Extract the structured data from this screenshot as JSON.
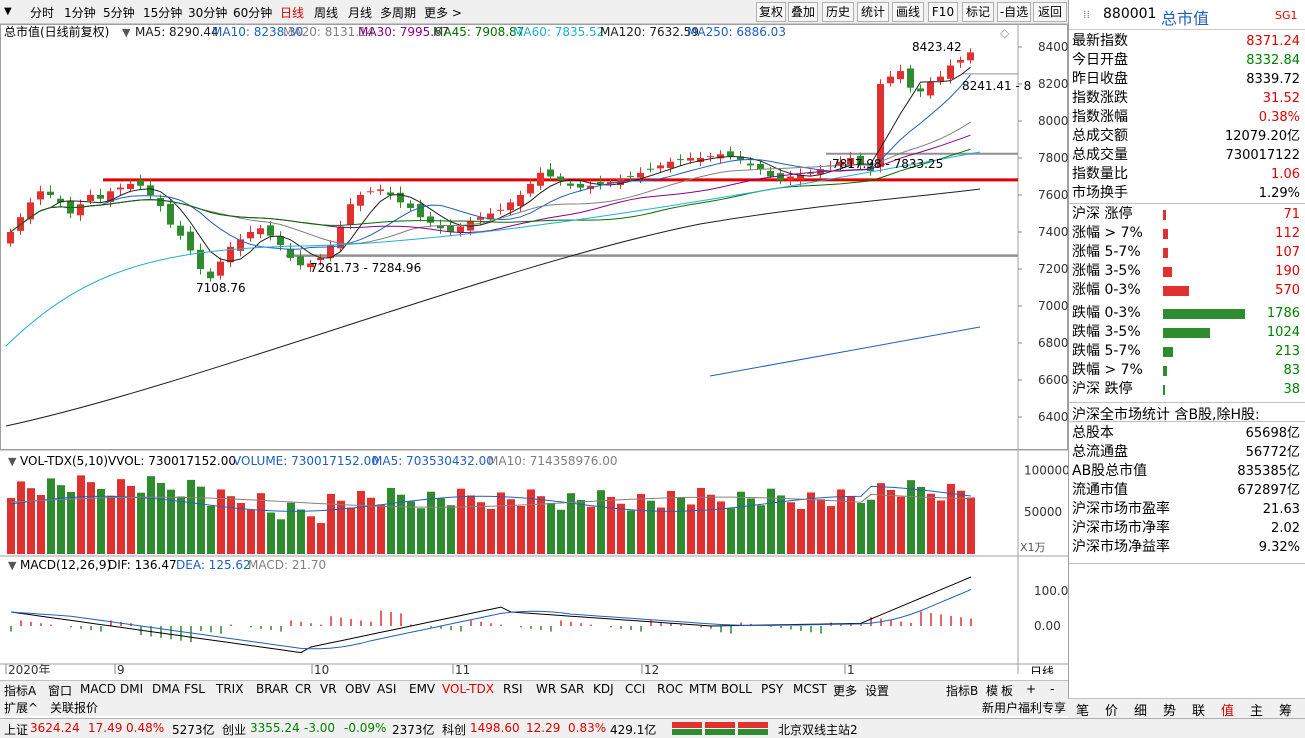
{
  "toolbar": {
    "periods": [
      "分时",
      "1分钟",
      "5分钟",
      "15分钟",
      "30分钟",
      "60分钟",
      "日线",
      "周线",
      "月线",
      "多周期",
      "更多 >"
    ],
    "active_period": "日线",
    "buttons": [
      "复权",
      "叠加",
      "历史",
      "统计",
      "画线",
      "F10",
      "标记",
      "-自选",
      "返回"
    ]
  },
  "chart": {
    "title": "总市值(日线前复权)",
    "ma_legend": [
      {
        "label": "MA5: 8290.44",
        "color": "#202020"
      },
      {
        "label": "MA10: 8238.30",
        "color": "#1f5fbf"
      },
      {
        "label": "MA20: 8131.14",
        "color": "#808080"
      },
      {
        "label": "MA30: 7995.67",
        "color": "#8b008b"
      },
      {
        "label": "MA45: 7908.87",
        "color": "#007000"
      },
      {
        "label": "MA60: 7835.52",
        "color": "#20b0d0"
      },
      {
        "label": "MA120: 7632.59",
        "color": "#202020"
      },
      {
        "label": "MA250: 6886.03",
        "color": "#1f5fbf"
      }
    ],
    "price_axis": [
      "8400",
      "8200",
      "8000",
      "7800",
      "7600",
      "7400",
      "7200",
      "7000",
      "6800",
      "6600",
      "6400"
    ],
    "annotations": {
      "high": "8423.42",
      "high_range": "8241.41 - 8",
      "range_mid": "7817.98 - 7833.25",
      "range_low": "7261.73 - 7284.96",
      "low": "7108.76"
    },
    "horizontal_levels": {
      "red": 7682,
      "gray_upper": 7823,
      "gray_lower": 7272
    }
  },
  "volume": {
    "legend": [
      {
        "label": "VOL-TDX(5,10)",
        "color": "#000"
      },
      {
        "label": "VVOL: 730017152.00",
        "color": "#000"
      },
      {
        "label": "VOLUME: 730017152.00",
        "color": "#1f5fbf"
      },
      {
        "label": "MA5: 703530432.00",
        "color": "#1f5fbf"
      },
      {
        "label": "MA10: 714358976.00",
        "color": "#808080"
      }
    ],
    "axis": [
      "100000",
      "50000"
    ],
    "unit": "X1万"
  },
  "macd": {
    "legend": [
      {
        "label": "MACD(12,26,9)",
        "color": "#000"
      },
      {
        "label": "DIF: 136.47",
        "color": "#000"
      },
      {
        "label": "DEA: 125.62",
        "color": "#1f5fbf"
      },
      {
        "label": "MACD: 21.70",
        "color": "#808080"
      }
    ],
    "axis": [
      "100.0",
      "0.00"
    ]
  },
  "date_axis": {
    "labels": [
      "2020年",
      "9",
      "10",
      "11",
      "12",
      "1"
    ],
    "right_label": "日线"
  },
  "indicator_tabs": [
    "指标A",
    "窗口",
    "MACD",
    "DMI",
    "DMA",
    "FSL",
    "TRIX",
    "BRAR",
    "CR",
    "VR",
    "OBV",
    "ASI",
    "EMV",
    "VOL-TDX",
    "RSI",
    "WR",
    "SAR",
    "KDJ",
    "CCI",
    "ROC",
    "MTM",
    "BOLL",
    "PSY",
    "MCST",
    "更多",
    "设置"
  ],
  "active_indicator": "VOL-TDX",
  "tab_right": [
    "指标B",
    "模",
    "板",
    "+",
    "-"
  ],
  "secondary_tabs": [
    "扩展^",
    "关联报价"
  ],
  "right_panel": {
    "code": "880001",
    "name": "总市值",
    "tag": "SG1",
    "quote": [
      {
        "label": "最新指数",
        "value": "8371.24",
        "cls": "red"
      },
      {
        "label": "今日开盘",
        "value": "8332.84",
        "cls": "grn"
      },
      {
        "label": "昨日收盘",
        "value": "8339.72",
        "cls": "blk"
      },
      {
        "label": "指数涨跌",
        "value": "31.52",
        "cls": "red"
      },
      {
        "label": "指数涨幅",
        "value": "0.38%",
        "cls": "red"
      },
      {
        "label": "总成交额",
        "value": "12079.20亿",
        "cls": "blk"
      },
      {
        "label": "总成交量",
        "value": "730017122",
        "cls": "blk"
      },
      {
        "label": "指数量比",
        "value": "1.06",
        "cls": "red"
      },
      {
        "label": "市场换手",
        "value": "1.29%",
        "cls": "blk"
      }
    ],
    "breadth": [
      {
        "label": "沪深 涨停",
        "value": "71",
        "cls": "red",
        "bar_color": "#e03030",
        "ratio": 0.04
      },
      {
        "label": "涨幅 > 7%",
        "value": "112",
        "cls": "red",
        "bar_color": "#e03030",
        "ratio": 0.063
      },
      {
        "label": "涨幅 5-7%",
        "value": "107",
        "cls": "red",
        "bar_color": "#e03030",
        "ratio": 0.06
      },
      {
        "label": "涨幅 3-5%",
        "value": "190",
        "cls": "red",
        "bar_color": "#e03030",
        "ratio": 0.106
      },
      {
        "label": "涨幅 0-3%",
        "value": "570",
        "cls": "red",
        "bar_color": "#e03030",
        "ratio": 0.319
      },
      {
        "label": "跌幅 0-3%",
        "value": "1786",
        "cls": "grn",
        "bar_color": "#2e8b2e",
        "ratio": 1.0
      },
      {
        "label": "跌幅 3-5%",
        "value": "1024",
        "cls": "grn",
        "bar_color": "#2e8b2e",
        "ratio": 0.573
      },
      {
        "label": "跌幅 5-7%",
        "value": "213",
        "cls": "grn",
        "bar_color": "#2e8b2e",
        "ratio": 0.119
      },
      {
        "label": "跌幅 > 7%",
        "value": "83",
        "cls": "grn",
        "bar_color": "#2e8b2e",
        "ratio": 0.046
      },
      {
        "label": "沪深 跌停",
        "value": "38",
        "cls": "grn",
        "bar_color": "#2e8b2e",
        "ratio": 0.021
      }
    ],
    "market_title": "沪深全市场统计 含B股,除H股:",
    "market": [
      {
        "label": "总股本",
        "value": "65698亿"
      },
      {
        "label": "总流通盘",
        "value": "56772亿"
      },
      {
        "label": "AB股总市值",
        "value": "835385亿"
      },
      {
        "label": "流通市值",
        "value": "672897亿"
      },
      {
        "label": "沪深市场市盈率",
        "value": "21.63"
      },
      {
        "label": "沪深市场市净率",
        "value": "2.02"
      },
      {
        "label": "沪深市场净益率",
        "value": "9.32%"
      }
    ],
    "bottom_tabs": [
      "笔",
      "价",
      "细",
      "势",
      "联",
      "值",
      "主",
      "筹"
    ],
    "active_bottom_tab": "值",
    "link_text": "新用户福利专享"
  },
  "status_bar": {
    "sh": {
      "name": "上证",
      "price": "3624.24",
      "chg": "17.49",
      "pct": "0.48%",
      "amt": "5273亿"
    },
    "cy": {
      "name": "创业",
      "price": "3355.24",
      "chg": "-3.00",
      "pct": "-0.09%",
      "amt": "2373亿"
    },
    "kc": {
      "name": "科创",
      "price": "1498.60",
      "chg": "12.29",
      "pct": "0.83%",
      "amt": "429.1亿"
    },
    "server": "北京双线主站2"
  },
  "colors": {
    "up": "#e03030",
    "down": "#2e8b2e",
    "accent": "#e00000"
  }
}
